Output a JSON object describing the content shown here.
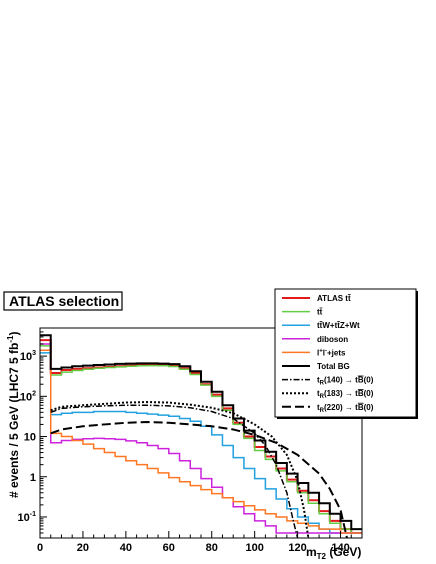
{
  "chart_data": {
    "type": "line",
    "annotation": "ATLAS selection",
    "xlabel": "m",
    "xlabel_sub": "T2",
    "xlabel_unit": " (GeV)",
    "ylabel": "# events / 5 GeV  (LHC7 5 fb",
    "ylabel_sup": "-1",
    "ylabel_end": ")",
    "xlim": [
      0,
      150
    ],
    "ylim": [
      0.03,
      5000
    ],
    "yscale": "log",
    "x_ticks": [
      0,
      20,
      40,
      60,
      80,
      100,
      120,
      140
    ],
    "x_tick_labels": [
      "0",
      "20",
      "40",
      "60",
      "80",
      "100",
      "120",
      "140"
    ],
    "y_ticks": [
      {
        "v": 0.1,
        "base": "10",
        "exp": "-1"
      },
      {
        "v": 1,
        "base": "1",
        "exp": ""
      },
      {
        "v": 10,
        "base": "10",
        "exp": ""
      },
      {
        "v": 100,
        "base": "10",
        "exp": "2"
      },
      {
        "v": 1000,
        "base": "10",
        "exp": "3"
      }
    ],
    "legend_position": "top-right",
    "series": [
      {
        "label": "ATLAS tt",
        "style": "hist",
        "color": "#e31a1c",
        "width": 2,
        "dash": "",
        "values": [
          2500,
          380,
          450,
          480,
          500,
          520,
          540,
          560,
          580,
          600,
          600,
          600,
          580,
          500,
          380,
          200,
          110,
          50,
          22,
          10,
          5.5,
          3.2,
          1.6,
          0.85,
          0.45,
          0.26,
          0.14,
          0.08,
          0.05,
          0.04
        ]
      },
      {
        "label": "tt",
        "style": "hist",
        "color": "#66cc44",
        "width": 1.5,
        "dash": "",
        "values": [
          1800,
          340,
          400,
          440,
          470,
          500,
          520,
          540,
          560,
          575,
          580,
          575,
          550,
          470,
          350,
          190,
          100,
          45,
          20,
          9,
          4.5,
          2.7,
          1.4,
          0.75,
          0.4,
          0.22,
          0.12,
          0.07,
          0.05,
          0.04
        ]
      },
      {
        "label": "ttW+ttZ+Wt",
        "style": "hist",
        "color": "#22a0e0",
        "width": 1.5,
        "dash": "",
        "values": [
          1200,
          35,
          38,
          40,
          40,
          42,
          42,
          42,
          40,
          38,
          36,
          34,
          32,
          28,
          24,
          18,
          11,
          6,
          3,
          1.6,
          0.9,
          0.5,
          0.28,
          0.16,
          0.1,
          0.07,
          0.05,
          0.04,
          0.04,
          0.04
        ]
      },
      {
        "label": "diboson",
        "style": "hist",
        "color": "#cc22dd",
        "width": 1.5,
        "dash": "",
        "values": [
          2000,
          7,
          8,
          8.5,
          8.8,
          9,
          8.8,
          8.5,
          7.8,
          7,
          6,
          5,
          3.8,
          2.5,
          1.6,
          0.9,
          0.55,
          0.3,
          0.18,
          0.12,
          0.08,
          0.06,
          0.04,
          0.04,
          0.04,
          0.04,
          0.04,
          0.04,
          0.04,
          0.04
        ]
      },
      {
        "label": "l'l+jets",
        "style": "hist",
        "color": "#ff7722",
        "width": 1.5,
        "dash": "",
        "values": [
          1400,
          12,
          10,
          8,
          6.5,
          5,
          4,
          3.2,
          2.5,
          2,
          1.6,
          1.25,
          0.95,
          0.75,
          0.6,
          0.48,
          0.38,
          0.3,
          0.24,
          0.19,
          0.15,
          0.12,
          0.1,
          0.08,
          0.07,
          0.06,
          0.05,
          0.05,
          0.04,
          0.04
        ]
      },
      {
        "label": "Total BG",
        "style": "hist",
        "color": "#000000",
        "width": 2,
        "dash": "",
        "values": [
          3300,
          480,
          520,
          560,
          580,
          600,
          620,
          640,
          650,
          660,
          660,
          650,
          630,
          560,
          420,
          230,
          130,
          60,
          28,
          14,
          8,
          4.2,
          2.2,
          1.2,
          0.7,
          0.4,
          0.22,
          0.12,
          0.08,
          0.05
        ]
      },
      {
        "label": "t(140) -> tB(0)",
        "style": "line",
        "color": "#000000",
        "width": 1.5,
        "dash": "6,2,1.5,2",
        "x": [
          5,
          10,
          20,
          30,
          40,
          50,
          60,
          70,
          80,
          90,
          100,
          105,
          110,
          115,
          118,
          120
        ],
        "y": [
          40,
          50,
          55,
          58,
          60,
          60,
          58,
          52,
          42,
          28,
          12,
          6,
          2,
          0.4,
          0.08,
          0.03
        ]
      },
      {
        "label": "t(183) -> tB(0)",
        "style": "line",
        "color": "#000000",
        "width": 2,
        "dash": "2,2",
        "x": [
          5,
          10,
          20,
          30,
          40,
          50,
          60,
          70,
          80,
          90,
          100,
          108,
          115,
          120,
          123,
          125
        ],
        "y": [
          45,
          55,
          60,
          65,
          70,
          72,
          70,
          62,
          52,
          38,
          20,
          10,
          3.5,
          0.8,
          0.15,
          0.03
        ]
      },
      {
        "label": "t(220) -> tB(0)",
        "style": "line",
        "color": "#000000",
        "width": 2,
        "dash": "9,4",
        "x": [
          5,
          10,
          20,
          30,
          40,
          50,
          60,
          70,
          80,
          90,
          100,
          110,
          120,
          130,
          135,
          140,
          143
        ],
        "y": [
          12,
          15,
          18,
          20,
          22,
          23,
          22,
          20,
          18,
          15,
          11,
          7,
          3.5,
          1.2,
          0.5,
          0.15,
          0.03
        ]
      }
    ],
    "legend_entries": [
      {
        "label": "ATLAS t",
        "bar": "t",
        "rest": ""
      },
      {
        "label": "t",
        "bar": "t",
        "rest": ""
      },
      {
        "label": "t",
        "bar": "t",
        "rest": "W+t",
        "bar2": "t",
        "rest2": "Z+Wt"
      },
      {
        "label": "diboson",
        "bar": "",
        "rest": ""
      },
      {
        "label": "l",
        "sup": "+",
        "mid": "l",
        "sup2": "-",
        "rest": "+jets"
      },
      {
        "label": "Total BG",
        "bar": "",
        "rest": ""
      },
      {
        "label": "t",
        "sub": "R",
        "rest": "(140) → t",
        "b": "B",
        "rest2": "(0)"
      },
      {
        "label": "t",
        "sub": "R",
        "rest": "(183) → t",
        "b": "B",
        "rest2": "(0)"
      },
      {
        "label": "t",
        "sub": "R",
        "rest": "(220) → t",
        "b": "B",
        "rest2": "(0)"
      }
    ]
  }
}
